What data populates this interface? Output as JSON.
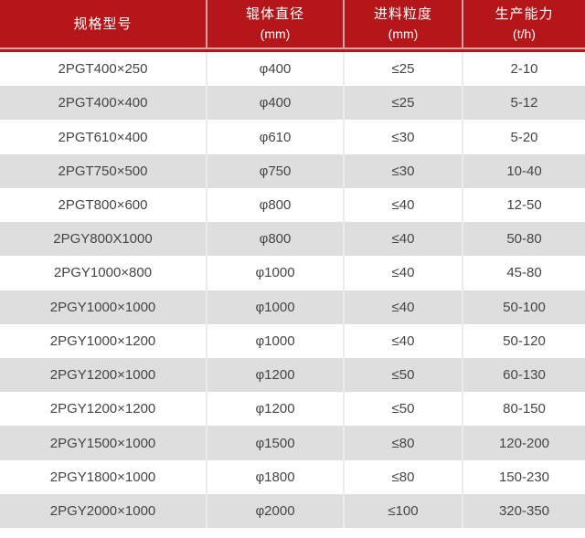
{
  "table": {
    "columns": [
      {
        "label": "规格型号",
        "unit": ""
      },
      {
        "label": "辊体直径",
        "unit": "(mm)"
      },
      {
        "label": "进料粒度",
        "unit": "(mm)"
      },
      {
        "label": "生产能力",
        "unit": "(t/h)"
      }
    ],
    "rows": [
      [
        "2PGT400×250",
        "φ400",
        "≤25",
        "2-10"
      ],
      [
        "2PGT400×400",
        "φ400",
        "≤25",
        "5-12"
      ],
      [
        "2PGT610×400",
        "φ610",
        "≤30",
        "5-20"
      ],
      [
        "2PGT750×500",
        "φ750",
        "≤30",
        "10-40"
      ],
      [
        "2PGT800×600",
        "φ800",
        "≤40",
        "12-50"
      ],
      [
        "2PGY800X1000",
        "φ800",
        "≤40",
        "50-80"
      ],
      [
        "2PGY1000×800",
        "φ1000",
        "≤40",
        "45-80"
      ],
      [
        "2PGY1000×1000",
        "φ1000",
        "≤40",
        "50-100"
      ],
      [
        "2PGY1000×1200",
        "φ1000",
        "≤40",
        "50-120"
      ],
      [
        "2PGY1200×1000",
        "φ1200",
        "≤50",
        "60-130"
      ],
      [
        "2PGY1200×1200",
        "φ1200",
        "≤50",
        "80-150"
      ],
      [
        "2PGY1500×1000",
        "φ1500",
        "≤80",
        "120-200"
      ],
      [
        "2PGY1800×1000",
        "φ1800",
        "≤80",
        "150-230"
      ],
      [
        "2PGY2000×1000",
        "φ2000",
        "≤100",
        "320-350"
      ]
    ],
    "colors": {
      "header_bg": "#b5161a",
      "header_text": "#ffffff",
      "header_divider": "#dda3a4",
      "row_odd_bg": "#ffffff",
      "row_even_bg": "#dedede",
      "cell_divider": "#ececec",
      "body_text": "#454545"
    }
  }
}
